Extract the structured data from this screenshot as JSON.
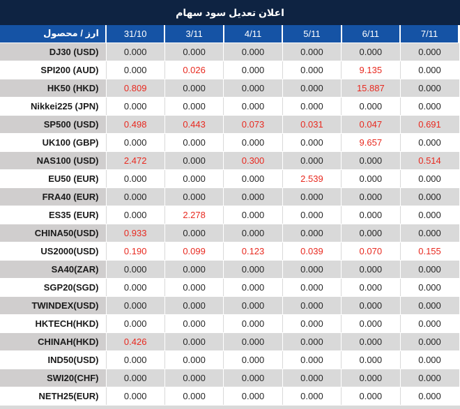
{
  "title": "اعلان تعديل سود سهام",
  "colors": {
    "title_bg": "#0e2342",
    "header_bg": "#1553a5",
    "header_text": "#ffffff",
    "row_gray": "#d9d9d9",
    "row_label_gray": "#d0cece",
    "row_white": "#ffffff",
    "value_text": "#262626",
    "red_value": "#e8291f"
  },
  "table": {
    "product_header": "ارز / محصول",
    "date_headers": [
      "31/10",
      "3/11",
      "4/11",
      "5/11",
      "6/11",
      "7/11"
    ],
    "rows": [
      {
        "label": "DJ30 (USD)",
        "values": [
          "0.000",
          "0.000",
          "0.000",
          "0.000",
          "0.000",
          "0.000"
        ],
        "red": [
          false,
          false,
          false,
          false,
          false,
          false
        ]
      },
      {
        "label": "SPI200 (AUD)",
        "values": [
          "0.000",
          "0.026",
          "0.000",
          "0.000",
          "9.135",
          "0.000"
        ],
        "red": [
          false,
          true,
          false,
          false,
          true,
          false
        ]
      },
      {
        "label": "HK50 (HKD)",
        "values": [
          "0.809",
          "0.000",
          "0.000",
          "0.000",
          "15.887",
          "0.000"
        ],
        "red": [
          true,
          false,
          false,
          false,
          true,
          false
        ]
      },
      {
        "label": "Nikkei225 (JPN)",
        "values": [
          "0.000",
          "0.000",
          "0.000",
          "0.000",
          "0.000",
          "0.000"
        ],
        "red": [
          false,
          false,
          false,
          false,
          false,
          false
        ]
      },
      {
        "label": "SP500 (USD)",
        "values": [
          "0.498",
          "0.443",
          "0.073",
          "0.031",
          "0.047",
          "0.691"
        ],
        "red": [
          true,
          true,
          true,
          true,
          true,
          true
        ]
      },
      {
        "label": "UK100 (GBP)",
        "values": [
          "0.000",
          "0.000",
          "0.000",
          "0.000",
          "9.657",
          "0.000"
        ],
        "red": [
          false,
          false,
          false,
          false,
          true,
          false
        ]
      },
      {
        "label": "NAS100 (USD)",
        "values": [
          "2.472",
          "0.000",
          "0.300",
          "0.000",
          "0.000",
          "0.514"
        ],
        "red": [
          true,
          false,
          true,
          false,
          false,
          true
        ]
      },
      {
        "label": "EU50 (EUR)",
        "values": [
          "0.000",
          "0.000",
          "0.000",
          "2.539",
          "0.000",
          "0.000"
        ],
        "red": [
          false,
          false,
          false,
          true,
          false,
          false
        ]
      },
      {
        "label": "FRA40 (EUR)",
        "values": [
          "0.000",
          "0.000",
          "0.000",
          "0.000",
          "0.000",
          "0.000"
        ],
        "red": [
          false,
          false,
          false,
          false,
          false,
          false
        ]
      },
      {
        "label": "ES35 (EUR)",
        "values": [
          "0.000",
          "2.278",
          "0.000",
          "0.000",
          "0.000",
          "0.000"
        ],
        "red": [
          false,
          true,
          false,
          false,
          false,
          false
        ]
      },
      {
        "label": "CHINA50(USD)",
        "values": [
          "0.933",
          "0.000",
          "0.000",
          "0.000",
          "0.000",
          "0.000"
        ],
        "red": [
          true,
          false,
          false,
          false,
          false,
          false
        ]
      },
      {
        "label": "US2000(USD)",
        "values": [
          "0.190",
          "0.099",
          "0.123",
          "0.039",
          "0.070",
          "0.155"
        ],
        "red": [
          true,
          true,
          true,
          true,
          true,
          true
        ]
      },
      {
        "label": "SA40(ZAR)",
        "values": [
          "0.000",
          "0.000",
          "0.000",
          "0.000",
          "0.000",
          "0.000"
        ],
        "red": [
          false,
          false,
          false,
          false,
          false,
          false
        ]
      },
      {
        "label": "SGP20(SGD)",
        "values": [
          "0.000",
          "0.000",
          "0.000",
          "0.000",
          "0.000",
          "0.000"
        ],
        "red": [
          false,
          false,
          false,
          false,
          false,
          false
        ]
      },
      {
        "label": "TWINDEX(USD)",
        "values": [
          "0.000",
          "0.000",
          "0.000",
          "0.000",
          "0.000",
          "0.000"
        ],
        "red": [
          false,
          false,
          false,
          false,
          false,
          false
        ]
      },
      {
        "label": "HKTECH(HKD)",
        "values": [
          "0.000",
          "0.000",
          "0.000",
          "0.000",
          "0.000",
          "0.000"
        ],
        "red": [
          false,
          false,
          false,
          false,
          false,
          false
        ]
      },
      {
        "label": "CHINAH(HKD)",
        "values": [
          "0.426",
          "0.000",
          "0.000",
          "0.000",
          "0.000",
          "0.000"
        ],
        "red": [
          true,
          false,
          false,
          false,
          false,
          false
        ]
      },
      {
        "label": "IND50(USD)",
        "values": [
          "0.000",
          "0.000",
          "0.000",
          "0.000",
          "0.000",
          "0.000"
        ],
        "red": [
          false,
          false,
          false,
          false,
          false,
          false
        ]
      },
      {
        "label": "SWI20(CHF)",
        "values": [
          "0.000",
          "0.000",
          "0.000",
          "0.000",
          "0.000",
          "0.000"
        ],
        "red": [
          false,
          false,
          false,
          false,
          false,
          false
        ]
      },
      {
        "label": "NETH25(EUR)",
        "values": [
          "0.000",
          "0.000",
          "0.000",
          "0.000",
          "0.000",
          "0.000"
        ],
        "red": [
          false,
          false,
          false,
          false,
          false,
          false
        ]
      }
    ]
  }
}
